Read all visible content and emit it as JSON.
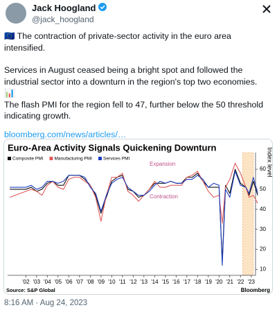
{
  "header": {
    "name": "Jack Hoogland",
    "handle": "@jack_hoogland",
    "time": "8:16 AM · Aug 24, 2023"
  },
  "post": {
    "paragraphs": [
      "🇪🇺 The contraction of private-sector activity in the euro area intensified.",
      "Services in August ceased being a bright spot and followed the industrial sector into a downturn in the region's top two economies.",
      "📊",
      "The flash PMI for the region fell to 47, further below the 50 threshold indicating growth."
    ],
    "link": "bloomberg.com/news/articles/…"
  },
  "chart_data": {
    "type": "line",
    "title": "Euro-Area Activity Signals Quickening Downturn",
    "y_label": "Index level",
    "source": "Source: S&P Global",
    "brand": "Bloomberg",
    "annotations": [
      "Expansion",
      "Contraction"
    ],
    "x": [
      2000.5,
      2002.0,
      2002.5,
      2003.0,
      2003.5,
      2004.0,
      2004.5,
      2005.0,
      2005.5,
      2006.0,
      2006.5,
      2007.0,
      2007.5,
      2008.0,
      2008.5,
      2009.0,
      2009.5,
      2010.0,
      2010.5,
      2011.0,
      2011.5,
      2012.0,
      2012.5,
      2013.0,
      2013.5,
      2014.0,
      2014.5,
      2015.0,
      2015.5,
      2016.0,
      2016.5,
      2017.0,
      2017.5,
      2018.0,
      2018.5,
      2019.0,
      2019.5,
      2020.0,
      2020.3,
      2020.6,
      2021.0,
      2021.5,
      2022.0,
      2022.5,
      2022.8,
      2023.2,
      2023.6
    ],
    "series": [
      {
        "name": "Composite PMI",
        "color": "#111111",
        "values": [
          50,
          50,
          51,
          49,
          50,
          53,
          54,
          52,
          52,
          57,
          57,
          57,
          55,
          52,
          47,
          38,
          46,
          54,
          56,
          57,
          50,
          49,
          46,
          47,
          50,
          53,
          53,
          53,
          54,
          53,
          53,
          56,
          56,
          58,
          54,
          51,
          51,
          51,
          14,
          52,
          48,
          60,
          53,
          51,
          47,
          54,
          47
        ]
      },
      {
        "name": "Manufacturing PMI",
        "color": "#e05a5a",
        "values": [
          46,
          49,
          50,
          49,
          47,
          52,
          54,
          51,
          50,
          55,
          56,
          56,
          54,
          52,
          46,
          34,
          47,
          56,
          56,
          58,
          49,
          47,
          44,
          47,
          50,
          54,
          51,
          51,
          52,
          52,
          52,
          56,
          57,
          59,
          54,
          49,
          46,
          47,
          33,
          51,
          55,
          63,
          58,
          51,
          46,
          47,
          43
        ]
      },
      {
        "name": "Services PMI",
        "color": "#1f3fbf",
        "values": [
          51,
          51,
          52,
          50,
          51,
          54,
          54,
          53,
          54,
          57,
          57,
          57,
          56,
          51,
          48,
          39,
          47,
          53,
          55,
          56,
          51,
          49,
          47,
          47,
          49,
          52,
          54,
          53,
          54,
          53,
          53,
          55,
          55,
          57,
          55,
          51,
          53,
          52,
          12,
          50,
          46,
          59,
          52,
          51,
          48,
          56,
          48
        ]
      }
    ],
    "xlim": [
      2000.3,
      2023.4
    ],
    "xticks": [
      {
        "value": 2002,
        "label": "'02"
      },
      {
        "value": 2003,
        "label": "'03"
      },
      {
        "value": 2004,
        "label": "'04"
      },
      {
        "value": 2005,
        "label": "'05"
      },
      {
        "value": 2006,
        "label": "'06"
      },
      {
        "value": 2007,
        "label": "'07"
      },
      {
        "value": 2008,
        "label": "'08"
      },
      {
        "value": 2009,
        "label": "'09"
      },
      {
        "value": 2010,
        "label": "'10"
      },
      {
        "value": 2011,
        "label": "'11"
      },
      {
        "value": 2012,
        "label": "'12"
      },
      {
        "value": 2013,
        "label": "'13"
      },
      {
        "value": 2014,
        "label": "'14"
      },
      {
        "value": 2015,
        "label": "'15"
      },
      {
        "value": 2016,
        "label": "'16"
      },
      {
        "value": 2017,
        "label": "'17"
      },
      {
        "value": 2018,
        "label": "'18"
      },
      {
        "value": 2019,
        "label": "'19"
      },
      {
        "value": 2020,
        "label": "'20"
      },
      {
        "value": 2021,
        "label": "'21"
      },
      {
        "value": 2022,
        "label": "'22"
      },
      {
        "value": 2023,
        "label": "'23"
      }
    ],
    "ylim": [
      7,
      63.5
    ],
    "yticks": [
      10,
      20,
      30,
      40,
      50,
      60
    ],
    "shaded_range": [
      2022.2,
      2023.2
    ],
    "shade_color": "#fbe3c4"
  }
}
